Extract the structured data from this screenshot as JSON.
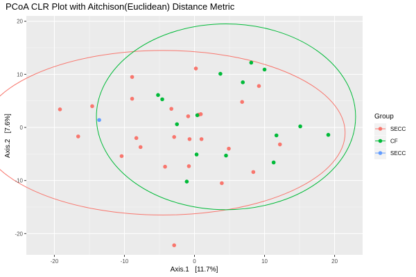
{
  "chart_data": {
    "type": "scatter",
    "title": "PCoA CLR Plot with Aitchison(Euclidean) Distance Metric",
    "xlabel": "Axis.1   [11.7%]",
    "ylabel": "Axis.2   [7.6%]",
    "xlim": [
      -24,
      24
    ],
    "ylim": [
      -24,
      21
    ],
    "x_ticks": [
      -20,
      -10,
      0,
      10,
      20
    ],
    "y_ticks": [
      -20,
      -10,
      0,
      10,
      20
    ],
    "x_tick_labels": [
      "-20",
      "-10",
      "0",
      "10",
      "20"
    ],
    "y_tick_labels": [
      "-20",
      "-10",
      "0",
      "10",
      "20"
    ],
    "grid": true,
    "legend": {
      "title": "Group",
      "position": "right",
      "entries": [
        {
          "label": "SECC",
          "color": "#F8766D"
        },
        {
          "label": "CF",
          "color": "#00BA38"
        },
        {
          "label": "SECC",
          "color": "#619CFF"
        }
      ]
    },
    "series": [
      {
        "name": "SECC",
        "color": "#F8766D",
        "points": [
          [
            -19.2,
            3.4
          ],
          [
            -16.6,
            -1.7
          ],
          [
            -14.6,
            4.0
          ],
          [
            -10.4,
            -5.4
          ],
          [
            -8.9,
            9.5
          ],
          [
            -8.9,
            5.4
          ],
          [
            -8.3,
            -2.0
          ],
          [
            -7.7,
            -3.7
          ],
          [
            -4.2,
            -7.4
          ],
          [
            -3.3,
            3.5
          ],
          [
            -2.9,
            -1.8
          ],
          [
            -2.9,
            -22.2
          ],
          [
            -0.9,
            2.1
          ],
          [
            -0.7,
            -2.2
          ],
          [
            -0.8,
            -7.3
          ],
          [
            0.2,
            11.1
          ],
          [
            0.6,
            2.4
          ],
          [
            0.9,
            2.5
          ],
          [
            1.0,
            -2.2
          ],
          [
            3.9,
            -10.5
          ],
          [
            4.9,
            -4.0
          ],
          [
            6.8,
            4.8
          ],
          [
            8.4,
            -8.4
          ],
          [
            9.2,
            7.8
          ],
          [
            12.2,
            -3.2
          ]
        ],
        "ellipse": {
          "center": [
            -4.5,
            -1.0
          ],
          "semi_axis_x": 26.0,
          "semi_axis_y": 15.5
        }
      },
      {
        "name": "CF",
        "color": "#00BA38",
        "points": [
          [
            -5.2,
            6.1
          ],
          [
            -4.6,
            5.3
          ],
          [
            -2.5,
            0.6
          ],
          [
            -1.1,
            -10.2
          ],
          [
            0.3,
            -5.1
          ],
          [
            0.4,
            2.3
          ],
          [
            3.7,
            10.1
          ],
          [
            4.5,
            -5.3
          ],
          [
            6.9,
            8.5
          ],
          [
            8.1,
            12.2
          ],
          [
            10.0,
            10.9
          ],
          [
            11.3,
            -6.6
          ],
          [
            11.7,
            -1.5
          ],
          [
            15.1,
            0.2
          ],
          [
            19.1,
            -1.4
          ]
        ],
        "ellipse": {
          "center": [
            4.5,
            2.0
          ],
          "semi_axis_x": 18.5,
          "semi_axis_y": 17.5
        }
      },
      {
        "name": "SECC",
        "color": "#619CFF",
        "points": [
          [
            -13.6,
            1.4
          ]
        ]
      }
    ]
  }
}
